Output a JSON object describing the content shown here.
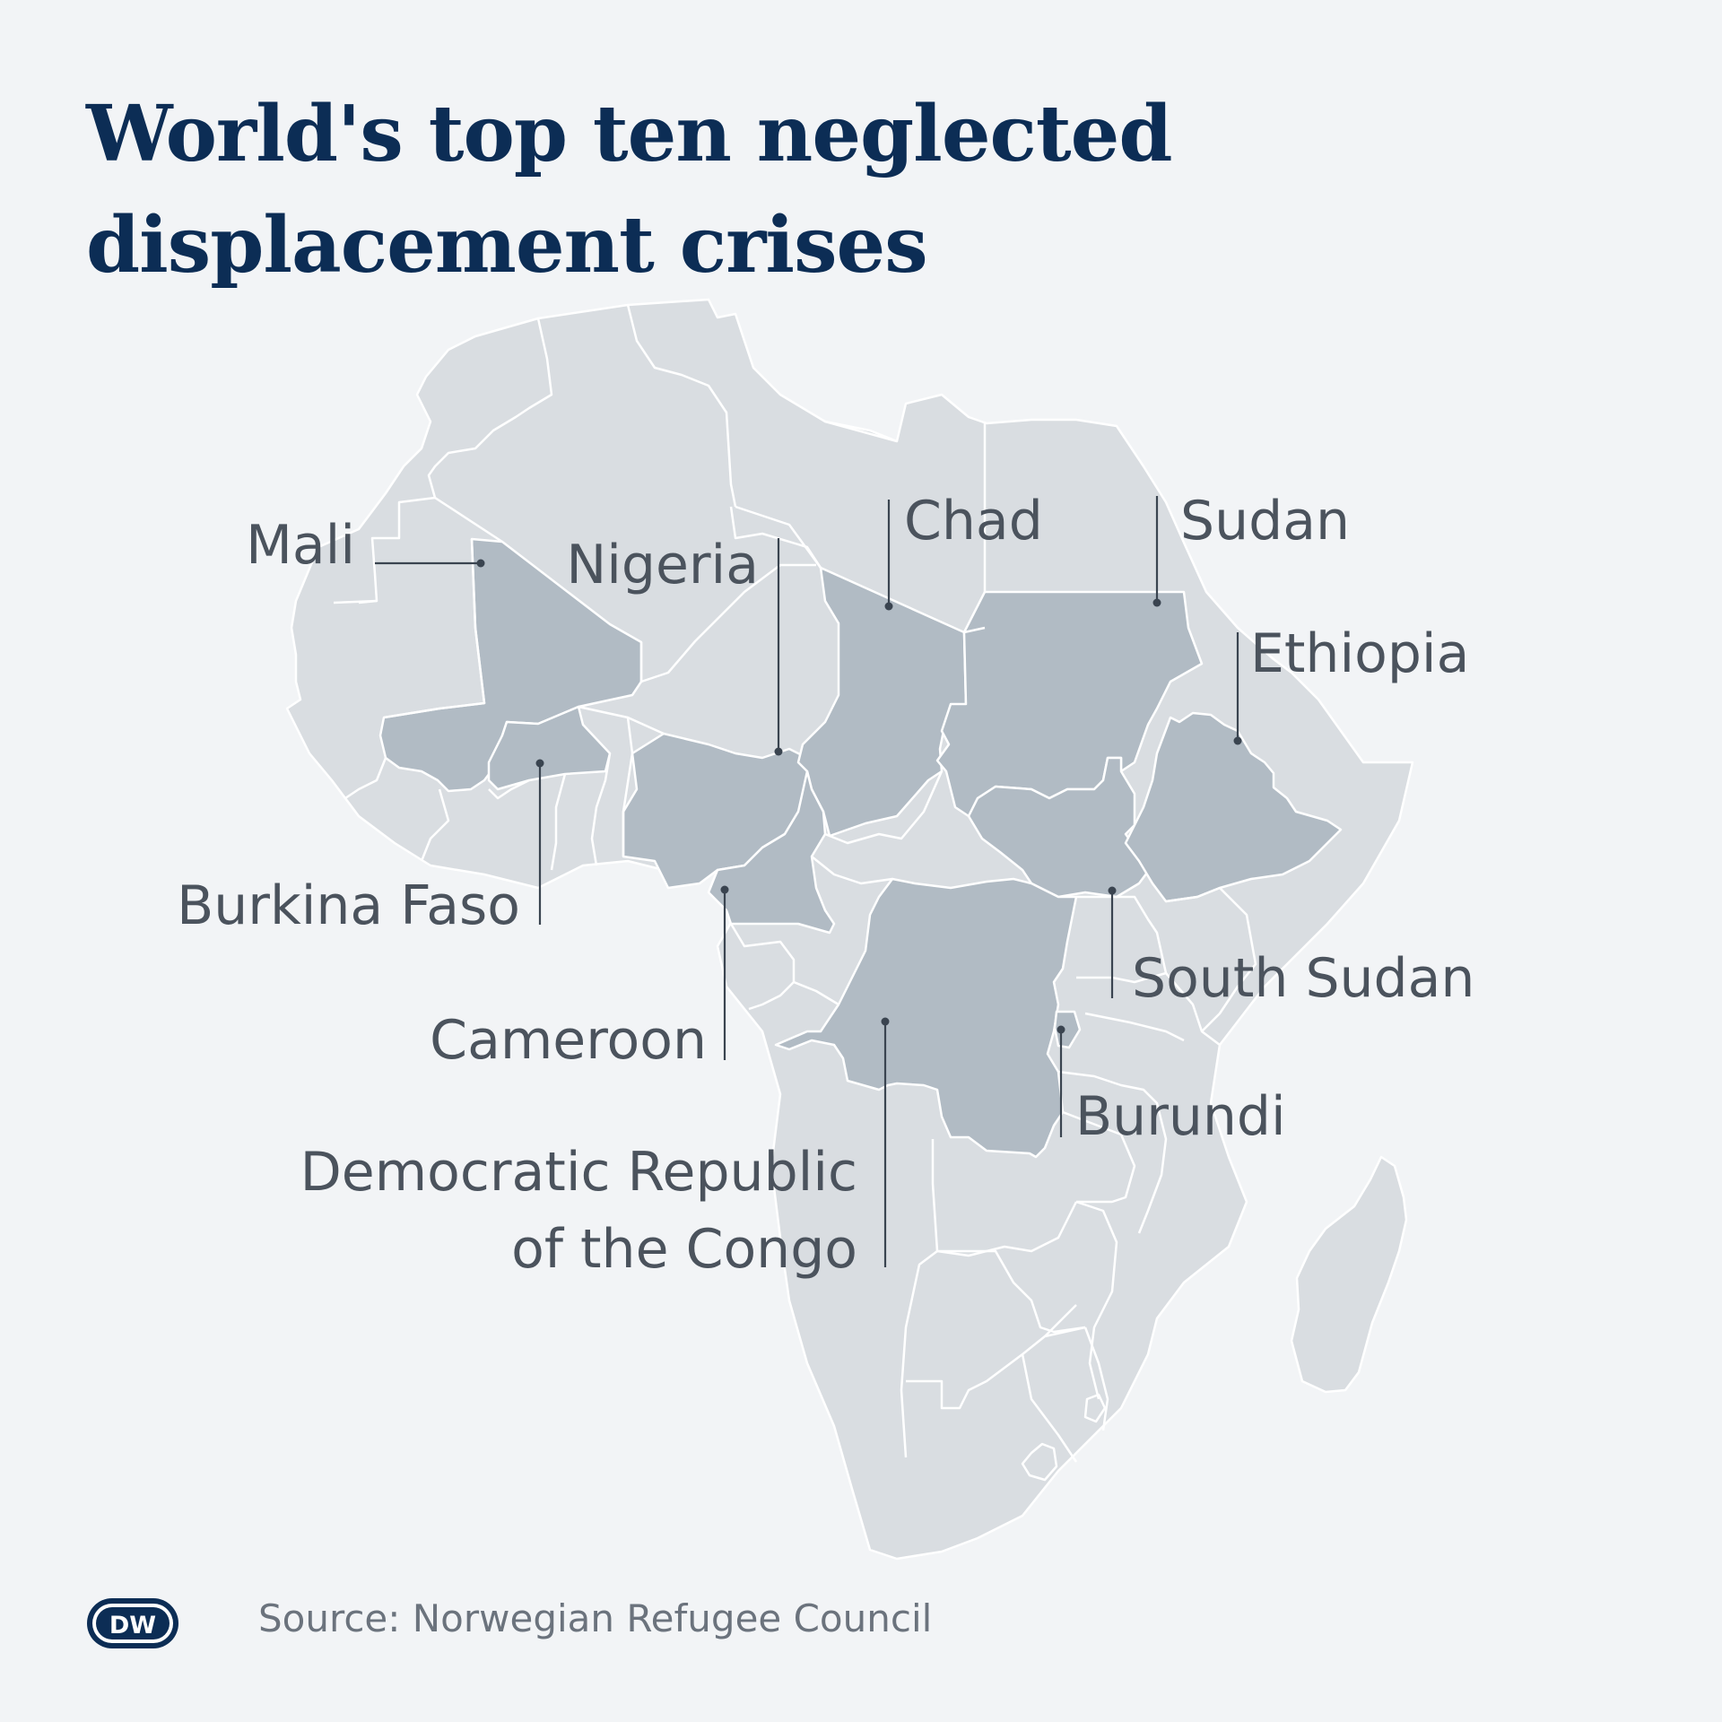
{
  "title": {
    "line1": "World's top ten neglected",
    "line2": "displacement crises"
  },
  "labels": {
    "mali": "Mali",
    "nigeria": "Nigeria",
    "chad": "Chad",
    "sudan": "Sudan",
    "ethiopia": "Ethiopia",
    "burkina_faso": "Burkina Faso",
    "cameroon": "Cameroon",
    "south_sudan": "South Sudan",
    "burundi": "Burundi",
    "drc_line1": "Democratic Republic",
    "drc_line2": "of the Congo"
  },
  "source": "Source: Norwegian Refugee Council",
  "logo_text": "DW",
  "colors": {
    "background": "#f2f4f6",
    "land": "#d9dde1",
    "highlighted_country": "#b1bbc4",
    "title": "#0c2d55",
    "label": "#4b535d"
  }
}
